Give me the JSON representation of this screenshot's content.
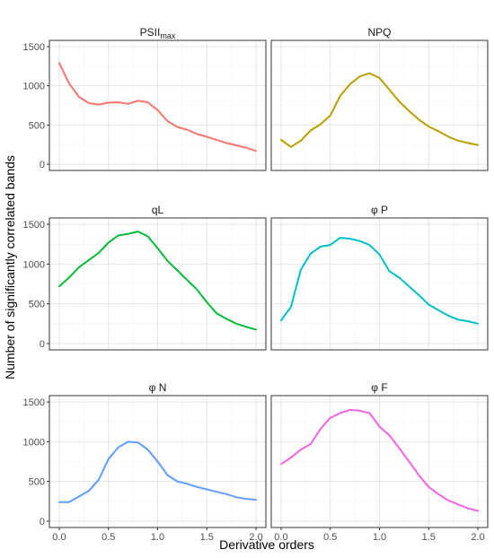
{
  "chart_data": {
    "type": "line",
    "layout": "facet-grid-3x2",
    "xlabel": "Derivative orders",
    "ylabel": "Number of significantly correlated bands",
    "x_ticks": [
      "0.0",
      "0.5",
      "1.0",
      "1.5",
      "2.0"
    ],
    "y_ticks": [
      "0",
      "500",
      "1000",
      "1500"
    ],
    "xlim": [
      0,
      2
    ],
    "ylim": [
      0,
      1500
    ],
    "grid": true,
    "legend": "none",
    "x": [
      0.0,
      0.1,
      0.2,
      0.3,
      0.4,
      0.5,
      0.6,
      0.7,
      0.8,
      0.9,
      1.0,
      1.1,
      1.2,
      1.3,
      1.4,
      1.5,
      1.6,
      1.7,
      1.8,
      1.9,
      2.0
    ],
    "panels": [
      {
        "title": "PSII",
        "title_sub": "max",
        "color": "#F8766D",
        "values": [
          1290,
          1030,
          860,
          780,
          760,
          785,
          790,
          770,
          810,
          790,
          690,
          550,
          475,
          440,
          385,
          350,
          310,
          270,
          240,
          210,
          170
        ]
      },
      {
        "title": "NPQ",
        "title_sub": "",
        "color": "#B79F00",
        "values": [
          310,
          220,
          300,
          430,
          510,
          620,
          870,
          1020,
          1120,
          1160,
          1100,
          950,
          800,
          680,
          570,
          480,
          420,
          350,
          300,
          270,
          245
        ]
      },
      {
        "title": "qL",
        "title_sub": "",
        "color": "#00BA38",
        "values": [
          720,
          830,
          960,
          1050,
          1140,
          1270,
          1360,
          1380,
          1410,
          1350,
          1200,
          1040,
          920,
          800,
          680,
          520,
          380,
          310,
          250,
          210,
          175
        ]
      },
      {
        "title": "φ P",
        "title_sub": "",
        "color": "#00BFC4",
        "values": [
          290,
          460,
          930,
          1130,
          1220,
          1240,
          1330,
          1320,
          1290,
          1240,
          1120,
          910,
          830,
          720,
          610,
          490,
          420,
          350,
          300,
          280,
          250
        ]
      },
      {
        "title": "φ N",
        "title_sub": "",
        "color": "#619CFF",
        "values": [
          240,
          240,
          310,
          380,
          520,
          780,
          930,
          1000,
          990,
          900,
          750,
          580,
          500,
          470,
          430,
          400,
          370,
          340,
          300,
          280,
          270
        ]
      },
      {
        "title": "φ F",
        "title_sub": "",
        "color": "#F564E3",
        "values": [
          720,
          800,
          900,
          970,
          1160,
          1300,
          1360,
          1400,
          1390,
          1360,
          1190,
          1080,
          920,
          750,
          580,
          430,
          340,
          260,
          210,
          160,
          130
        ]
      }
    ]
  }
}
